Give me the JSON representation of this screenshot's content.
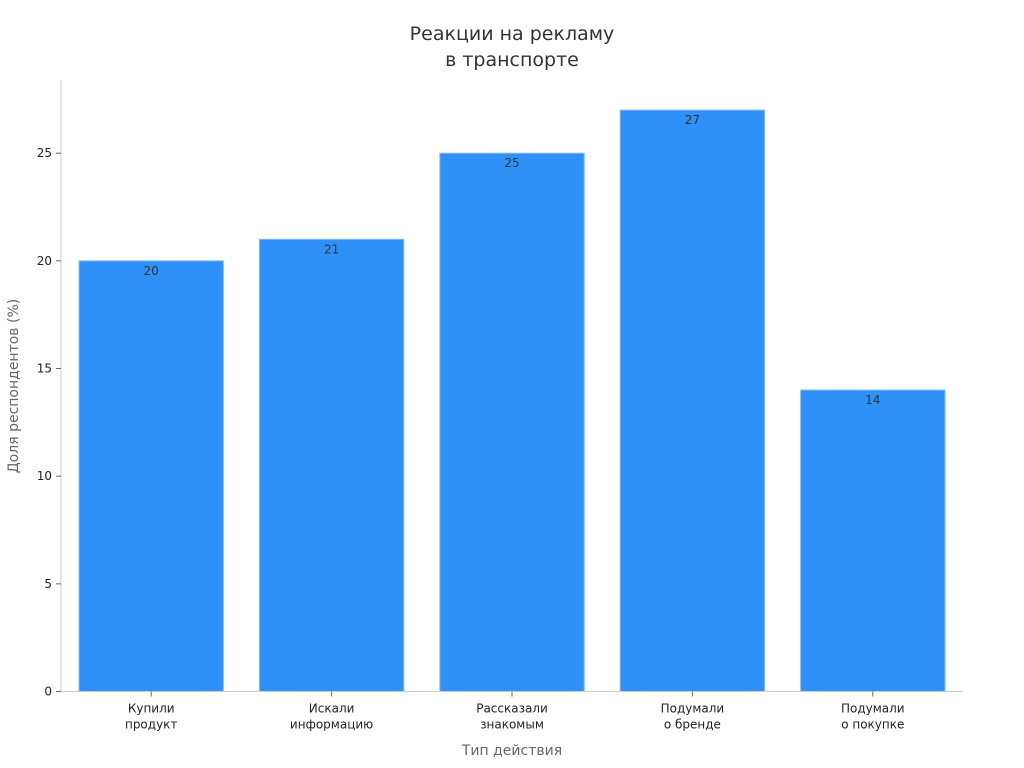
{
  "chart_data": {
    "type": "bar",
    "title_lines": [
      "Реакции на рекламу",
      "в транспорте"
    ],
    "xlabel": "Тип действия",
    "ylabel": "Доля респондентов (%)",
    "categories": [
      [
        "Купили",
        "продукт"
      ],
      [
        "Искали",
        "информацию"
      ],
      [
        "Рассказали",
        "знакомым"
      ],
      [
        "Подумали",
        "о бренде"
      ],
      [
        "Подумали",
        "о покупке"
      ]
    ],
    "values": [
      20,
      21,
      25,
      27,
      14
    ],
    "ylim": [
      0,
      28.4
    ],
    "yticks": [
      0,
      5,
      10,
      15,
      20,
      25
    ],
    "grid": false,
    "legend": "none",
    "bar_color": "#2f91f7",
    "bar_edge_color": "#7fb8f5"
  }
}
